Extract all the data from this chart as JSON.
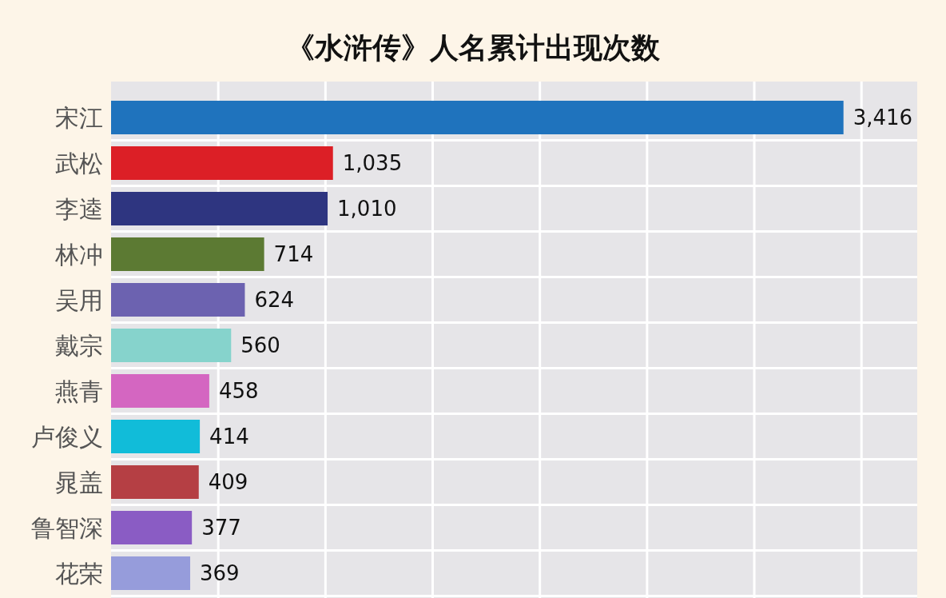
{
  "chart_data": {
    "type": "bar",
    "orientation": "horizontal",
    "title": "《水浒传》人名累计出现次数",
    "categories": [
      "宋江",
      "武松",
      "李逵",
      "林冲",
      "吴用",
      "戴宗",
      "燕青",
      "卢俊义",
      "晁盖",
      "鲁智深",
      "花荣"
    ],
    "values": [
      3416,
      1035,
      1010,
      714,
      624,
      560,
      458,
      414,
      409,
      377,
      369
    ],
    "value_labels": [
      "3,416",
      "1,035",
      "1,010",
      "714",
      "624",
      "560",
      "458",
      "414",
      "409",
      "377",
      "369"
    ],
    "colors": [
      "#1f73bd",
      "#dc1f26",
      "#2e3580",
      "#5c7a33",
      "#6c62b0",
      "#86d3cc",
      "#d466c1",
      "#11bcd9",
      "#b53f44",
      "#8a5cc4",
      "#969cdb"
    ],
    "xlim": [
      0,
      3760
    ],
    "xticks": [
      {
        "value": 500,
        "label": null
      },
      {
        "value": 1000,
        "label": null
      },
      {
        "value": 1500,
        "label": null
      },
      {
        "value": 2000,
        "label": null
      },
      {
        "value": 2500,
        "label": null
      },
      {
        "value": 3000,
        "label": null
      },
      {
        "value": 3500,
        "label": null
      }
    ],
    "tick_labels": "y",
    "grid": true
  }
}
